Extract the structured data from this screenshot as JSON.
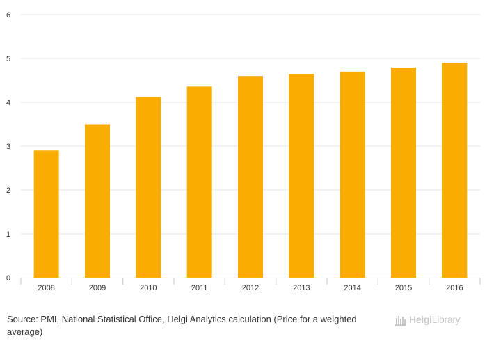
{
  "chart_data": {
    "type": "bar",
    "title": "",
    "xlabel": "",
    "ylabel": "",
    "categories": [
      "2008",
      "2009",
      "2010",
      "2011",
      "2012",
      "2013",
      "2014",
      "2015",
      "2016"
    ],
    "values": [
      2.9,
      3.5,
      4.12,
      4.36,
      4.6,
      4.65,
      4.7,
      4.79,
      4.9
    ],
    "ylim": [
      0,
      6
    ],
    "yticks": [
      0,
      1,
      2,
      3,
      4,
      5,
      6
    ],
    "grid": true,
    "legend": "none",
    "bar_color": "#f9ad00"
  },
  "source_text": "Source: PMI, National Statistical Office, Helgi Analytics calculation (Price for a weighted average)",
  "brand": {
    "name_part1": "Helgi",
    "name_part2": "Library",
    "color": "#c9c9c9",
    "icon": "library-icon"
  }
}
